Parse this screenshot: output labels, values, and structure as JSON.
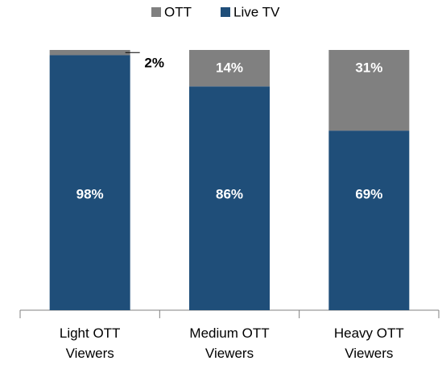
{
  "chart_data": {
    "type": "stacked_bar",
    "categories": [
      "Light OTT Viewers",
      "Medium OTT Viewers",
      "Heavy OTT Viewers"
    ],
    "series": [
      {
        "name": "OTT",
        "color": "#808080",
        "values": [
          2,
          14,
          31
        ],
        "value_labels": [
          "2%",
          "14%",
          "31%"
        ]
      },
      {
        "name": "Live TV",
        "color": "#1f4e79",
        "values": [
          98,
          86,
          69
        ],
        "value_labels": [
          "98%",
          "86%",
          "69%"
        ]
      }
    ],
    "legend": "top"
  }
}
